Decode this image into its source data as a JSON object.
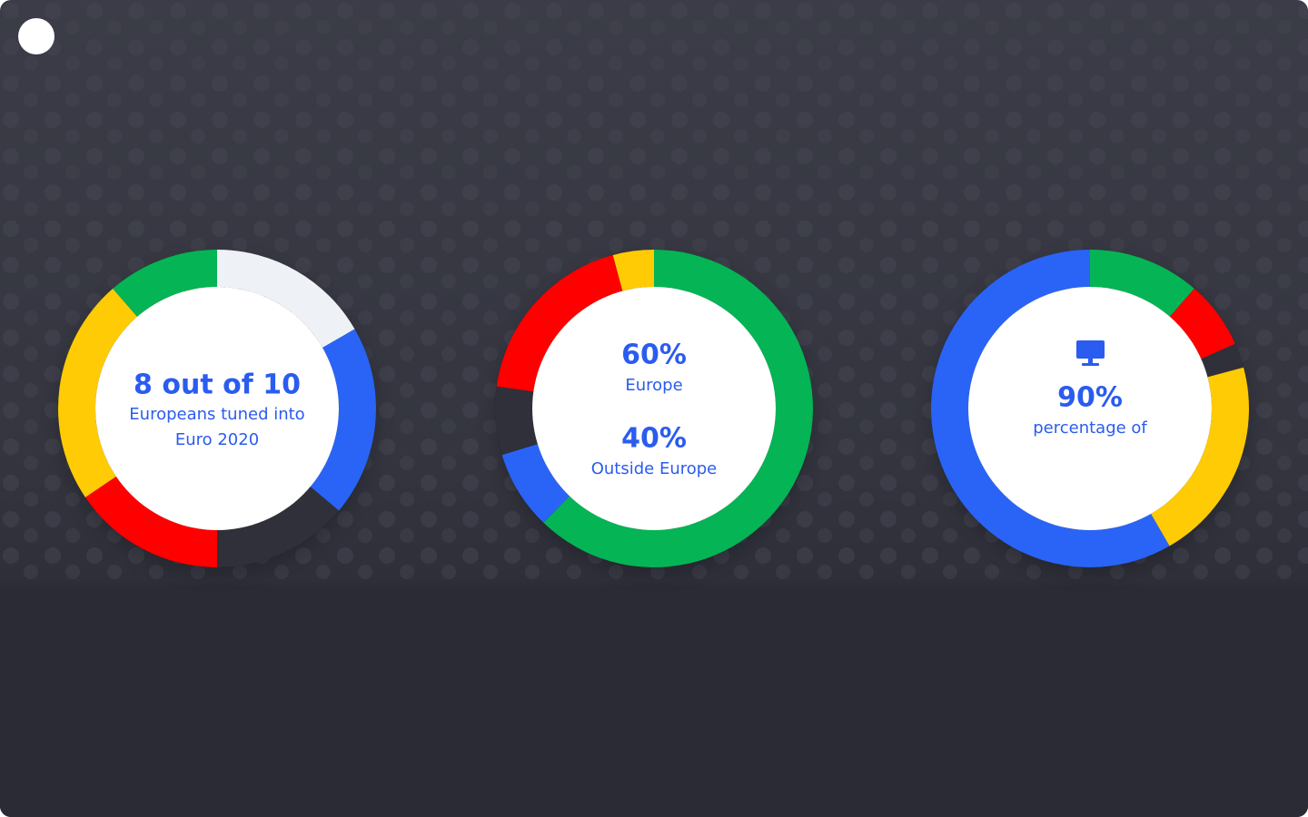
{
  "stats": [
    {
      "headline": "8 out of 10",
      "lines": [
        "Europeans tuned into",
        "Euro 2020"
      ]
    },
    {
      "items": [
        {
          "value": "60%",
          "label": "Europe"
        },
        {
          "value": "40%",
          "label": "Outside Europe"
        }
      ]
    },
    {
      "value": "90%",
      "label": "percentage of"
    }
  ]
}
